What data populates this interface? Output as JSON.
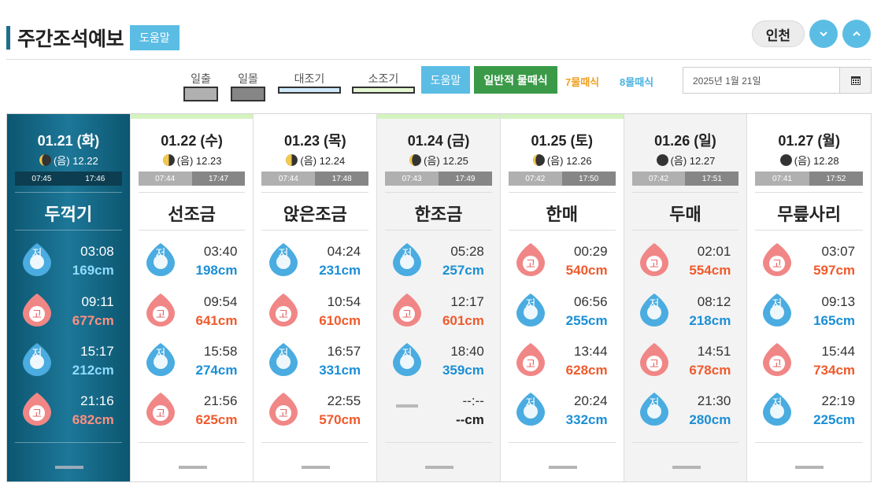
{
  "header": {
    "title": "주간조석예보",
    "help_label": "도움말",
    "region_label": "인천"
  },
  "legend": {
    "sunrise_label": "일출",
    "sunset_label": "일몰",
    "spring_label": "대조기",
    "neap_label": "소조기",
    "help_label": "도움말",
    "general_label": "일반적 물때식",
    "seven_label": "7물때식",
    "eight_label": "8물때식",
    "sunrise_color": "#b0b0b0",
    "sunset_color": "#868686",
    "spring_color": "#cfe9fb",
    "neap_color": "#e3f7d2"
  },
  "date_field": {
    "value": "2025년 1월 21일"
  },
  "days": [
    {
      "date": "01.21 (화)",
      "lunar": "(음) 12.22",
      "moon_phase": "waning-crescent",
      "sunrise": "07:45",
      "sunset": "17:46",
      "tide_name": "두꺽기",
      "period": "active",
      "tides": [
        {
          "kind": "low",
          "badge": "저",
          "time": "03:08",
          "level": "169cm"
        },
        {
          "kind": "high",
          "badge": "고",
          "time": "09:11",
          "level": "677cm"
        },
        {
          "kind": "low",
          "badge": "저",
          "time": "15:17",
          "level": "212cm"
        },
        {
          "kind": "high",
          "badge": "고",
          "time": "21:16",
          "level": "682cm"
        }
      ]
    },
    {
      "date": "01.22 (수)",
      "lunar": "(음) 12.23",
      "moon_phase": "last-quarter",
      "sunrise": "07:44",
      "sunset": "17:47",
      "tide_name": "선조금",
      "period": "neap",
      "tides": [
        {
          "kind": "low",
          "badge": "저",
          "time": "03:40",
          "level": "198cm"
        },
        {
          "kind": "high",
          "badge": "고",
          "time": "09:54",
          "level": "641cm"
        },
        {
          "kind": "low",
          "badge": "저",
          "time": "15:58",
          "level": "274cm"
        },
        {
          "kind": "high",
          "badge": "고",
          "time": "21:56",
          "level": "625cm"
        }
      ]
    },
    {
      "date": "01.23 (목)",
      "lunar": "(음) 12.24",
      "moon_phase": "last-quarter",
      "sunrise": "07:44",
      "sunset": "17:48",
      "tide_name": "앉은조금",
      "period": "none",
      "tides": [
        {
          "kind": "low",
          "badge": "저",
          "time": "04:24",
          "level": "231cm"
        },
        {
          "kind": "high",
          "badge": "고",
          "time": "10:54",
          "level": "610cm"
        },
        {
          "kind": "low",
          "badge": "저",
          "time": "16:57",
          "level": "331cm"
        },
        {
          "kind": "high",
          "badge": "고",
          "time": "22:55",
          "level": "570cm"
        }
      ]
    },
    {
      "date": "01.24 (금)",
      "lunar": "(음) 12.25",
      "moon_phase": "waning-crescent",
      "sunrise": "07:43",
      "sunset": "17:49",
      "tide_name": "한조금",
      "period": "neap",
      "tides": [
        {
          "kind": "low",
          "badge": "저",
          "time": "05:28",
          "level": "257cm"
        },
        {
          "kind": "high",
          "badge": "고",
          "time": "12:17",
          "level": "601cm"
        },
        {
          "kind": "low",
          "badge": "저",
          "time": "18:40",
          "level": "359cm"
        },
        {
          "kind": "none",
          "badge": "",
          "time": "--:--",
          "level": "--cm"
        }
      ]
    },
    {
      "date": "01.25 (토)",
      "lunar": "(음) 12.26",
      "moon_phase": "waning-crescent",
      "sunrise": "07:42",
      "sunset": "17:50",
      "tide_name": "한매",
      "period": "neap",
      "tides": [
        {
          "kind": "high",
          "badge": "고",
          "time": "00:29",
          "level": "540cm"
        },
        {
          "kind": "low",
          "badge": "저",
          "time": "06:56",
          "level": "255cm"
        },
        {
          "kind": "high",
          "badge": "고",
          "time": "13:44",
          "level": "628cm"
        },
        {
          "kind": "low",
          "badge": "저",
          "time": "20:24",
          "level": "332cm"
        }
      ]
    },
    {
      "date": "01.26 (일)",
      "lunar": "(음) 12.27",
      "moon_phase": "new-moon",
      "sunrise": "07:42",
      "sunset": "17:51",
      "tide_name": "두매",
      "period": "none",
      "tides": [
        {
          "kind": "high",
          "badge": "고",
          "time": "02:01",
          "level": "554cm"
        },
        {
          "kind": "low",
          "badge": "저",
          "time": "08:12",
          "level": "218cm"
        },
        {
          "kind": "high",
          "badge": "고",
          "time": "14:51",
          "level": "678cm"
        },
        {
          "kind": "low",
          "badge": "저",
          "time": "21:30",
          "level": "280cm"
        }
      ]
    },
    {
      "date": "01.27 (월)",
      "lunar": "(음) 12.28",
      "moon_phase": "new-moon",
      "sunrise": "07:41",
      "sunset": "17:52",
      "tide_name": "무릎사리",
      "period": "none",
      "tides": [
        {
          "kind": "high",
          "badge": "고",
          "time": "03:07",
          "level": "597cm"
        },
        {
          "kind": "low",
          "badge": "저",
          "time": "09:13",
          "level": "165cm"
        },
        {
          "kind": "high",
          "badge": "고",
          "time": "15:44",
          "level": "734cm"
        },
        {
          "kind": "low",
          "badge": "저",
          "time": "22:19",
          "level": "225cm"
        }
      ]
    }
  ]
}
